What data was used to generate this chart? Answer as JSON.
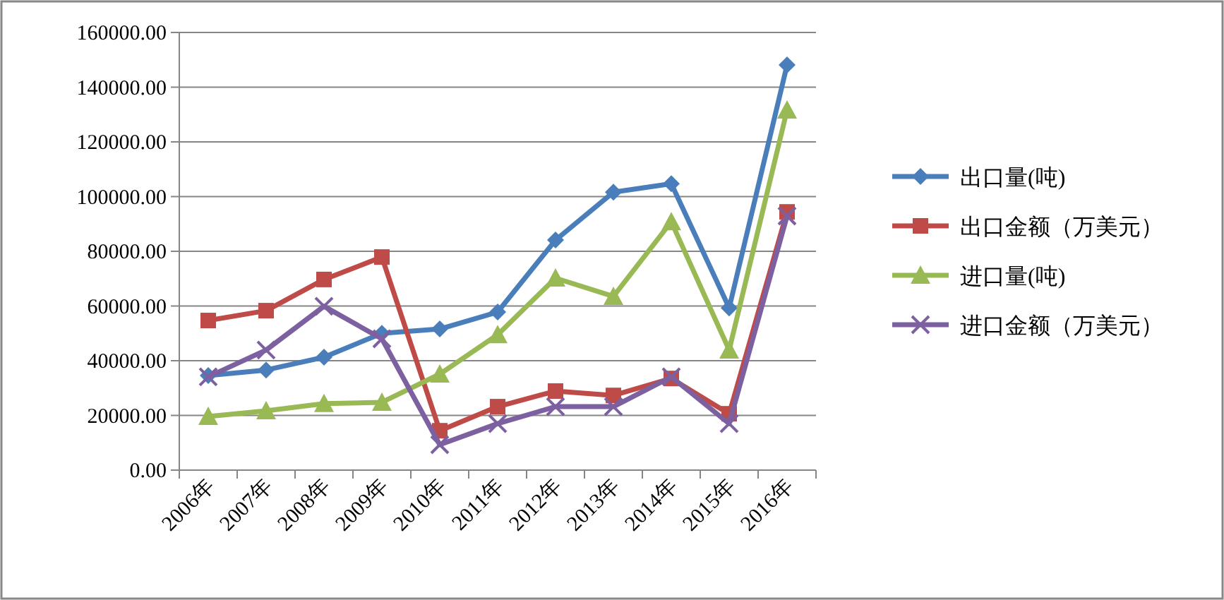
{
  "chart_data": {
    "type": "line",
    "categories": [
      "2006年",
      "2007年",
      "2008年",
      "2009年",
      "2010年",
      "2011年",
      "2012年",
      "2013年",
      "2014年",
      "2015年",
      "2016年"
    ],
    "ylim": [
      0,
      160000
    ],
    "yticks": [
      {
        "value": 0,
        "label": "0.00"
      },
      {
        "value": 20000,
        "label": "20000.00"
      },
      {
        "value": 40000,
        "label": "40000.00"
      },
      {
        "value": 60000,
        "label": "60000.00"
      },
      {
        "value": 80000,
        "label": "80000.00"
      },
      {
        "value": 100000,
        "label": "100000.00"
      },
      {
        "value": 120000,
        "label": "120000.00"
      },
      {
        "value": 140000,
        "label": "140000.00"
      },
      {
        "value": 160000,
        "label": "160000.00"
      }
    ],
    "grid": "y",
    "legend": "right",
    "series": [
      {
        "name": "出口量(吨)",
        "color": "#4a7ebb",
        "marker": "diamond",
        "values": [
          34600,
          36600,
          41300,
          50000,
          51600,
          57800,
          84100,
          101600,
          104700,
          59300,
          148100
        ]
      },
      {
        "name": "出口金额（万美元）",
        "color": "#be4b48",
        "marker": "square",
        "values": [
          54700,
          58300,
          69700,
          77900,
          14400,
          23200,
          28900,
          27300,
          33500,
          20600,
          94400
        ]
      },
      {
        "name": "进口量(吨)",
        "color": "#98b954",
        "marker": "triangle",
        "values": [
          19600,
          21700,
          24300,
          24800,
          35100,
          49500,
          70200,
          63500,
          90800,
          43900,
          131600
        ]
      },
      {
        "name": "进口金额（万美元）",
        "color": "#7d60a0",
        "marker": "cross",
        "values": [
          34100,
          43900,
          59900,
          48000,
          9300,
          17000,
          23200,
          23200,
          34100,
          17000,
          92900
        ]
      }
    ]
  }
}
